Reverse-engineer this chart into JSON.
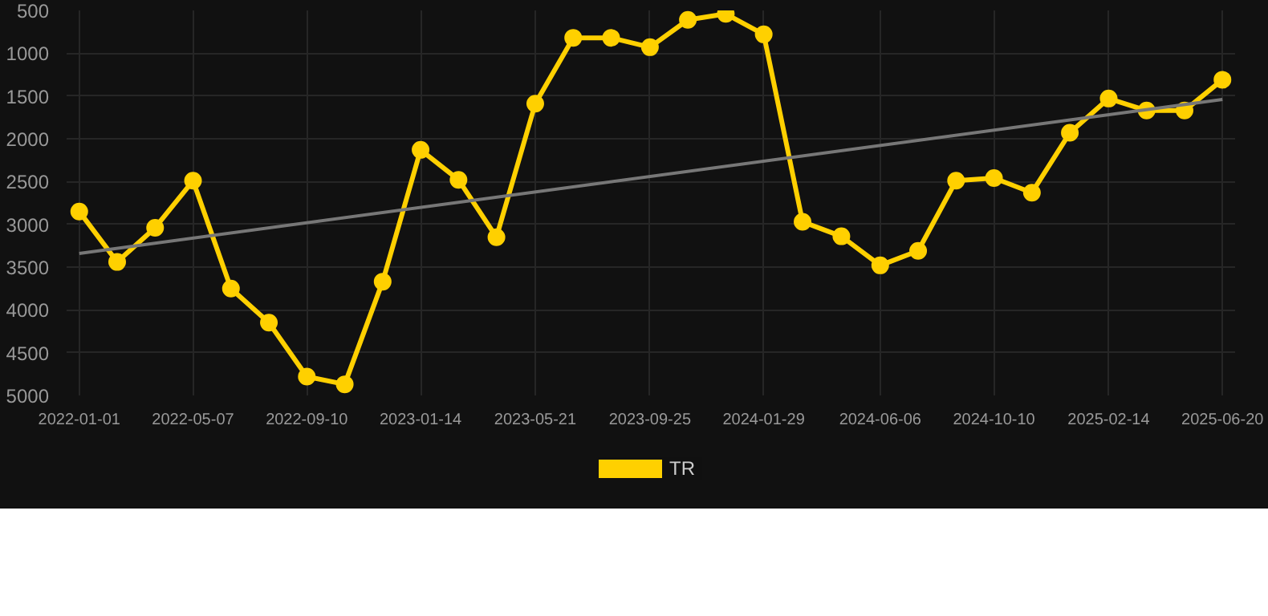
{
  "chart_data": {
    "type": "line",
    "x": [
      "2022-01-01",
      "2022-02-12",
      "2022-03-26",
      "2022-05-07",
      "2022-06-18",
      "2022-07-30",
      "2022-09-10",
      "2022-10-22",
      "2022-12-03",
      "2023-01-14",
      "2023-02-25",
      "2023-04-08",
      "2023-05-21",
      "2023-07-02",
      "2023-08-13",
      "2023-09-25",
      "2023-11-06",
      "2023-12-18",
      "2024-01-29",
      "2024-03-12",
      "2024-04-24",
      "2024-06-06",
      "2024-07-18",
      "2024-08-29",
      "2024-10-10",
      "2024-11-21",
      "2025-01-02",
      "2025-02-14",
      "2025-03-28",
      "2025-05-09",
      "2025-06-20"
    ],
    "series": [
      {
        "name": "TR",
        "color": "#ffd000",
        "marker": "circle",
        "values": [
          2850,
          3440,
          3040,
          2490,
          3750,
          4150,
          4780,
          4870,
          3670,
          2130,
          2480,
          3150,
          1590,
          820,
          820,
          930,
          610,
          540,
          780,
          2970,
          3140,
          3480,
          3310,
          2490,
          2460,
          2630,
          1930,
          1530,
          1670,
          1670,
          1310
        ]
      },
      {
        "color": "#777777",
        "marker": "none",
        "x": [
          "2022-01-01",
          "2025-06-20"
        ],
        "values": [
          3340,
          1540
        ]
      }
    ],
    "ylim": [
      5000,
      500
    ],
    "yticks": [
      500,
      1000,
      1500,
      2000,
      2500,
      3000,
      3500,
      4000,
      4500,
      5000
    ],
    "xlim": [
      "2021-12-18",
      "2025-07-04"
    ],
    "xticks": [
      {
        "value": "2022-01-01",
        "label": "2022-01-01"
      },
      {
        "value": "2022-05-07",
        "label": "2022-05-07"
      },
      {
        "value": "2022-09-10",
        "label": "2022-09-10"
      },
      {
        "value": "2023-01-14",
        "label": "2023-01-14"
      },
      {
        "value": "2023-05-21",
        "label": "2023-05-21"
      },
      {
        "value": "2023-09-25",
        "label": "2023-09-25"
      },
      {
        "value": "2024-01-29",
        "label": "2024-01-29"
      },
      {
        "value": "2024-06-06",
        "label": "2024-06-06"
      },
      {
        "value": "2024-10-10",
        "label": "2024-10-10"
      },
      {
        "value": "2025-02-14",
        "label": "2025-02-14"
      },
      {
        "value": "2025-06-20",
        "label": "2025-06-20"
      }
    ],
    "grid": true,
    "legend": "bottom",
    "line_style": "solid"
  }
}
